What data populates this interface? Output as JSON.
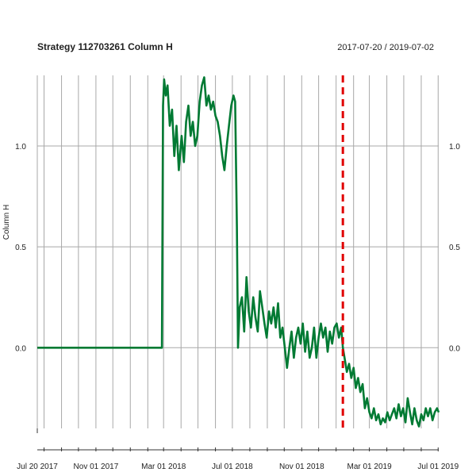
{
  "chart_data": {
    "type": "line",
    "title": "Strategy 112703261 Column H",
    "date_range": "2017-07-20 / 2019-07-02",
    "xlabel": "",
    "ylabel": "Column H",
    "x_tick_labels": [
      "Jul 20 2017",
      "Nov 01 2017",
      "Mar 01 2018",
      "Jul 01 2018",
      "Nov 01 2018",
      "Mar 01 2019",
      "Jul 01 2019"
    ],
    "x_tick_dates": [
      "2017-07-20",
      "2017-11-01",
      "2018-03-01",
      "2018-07-01",
      "2018-11-01",
      "2019-03-01",
      "2019-07-01"
    ],
    "xlim": [
      "2017-07-20",
      "2019-07-02"
    ],
    "y_tick_values": [
      0.0,
      0.5,
      1.0
    ],
    "y_tick_labels": [
      "0.0",
      "0.5",
      "1.0"
    ],
    "ylim": [
      -0.4,
      1.35
    ],
    "grid": true,
    "vline": {
      "date": "2019-01-13",
      "color": "#e00000",
      "style": "dashed"
    },
    "series": [
      {
        "color": "#007a33",
        "points": [
          [
            "2017-07-20",
            0.0
          ],
          [
            "2017-09-15",
            0.0
          ],
          [
            "2017-11-15",
            0.0
          ],
          [
            "2018-01-15",
            0.0
          ],
          [
            "2018-02-26",
            0.0
          ],
          [
            "2018-02-27",
            0.6
          ],
          [
            "2018-02-28",
            1.2
          ],
          [
            "2018-03-02",
            1.33
          ],
          [
            "2018-03-05",
            1.25
          ],
          [
            "2018-03-08",
            1.3
          ],
          [
            "2018-03-12",
            1.1
          ],
          [
            "2018-03-16",
            1.18
          ],
          [
            "2018-03-20",
            0.95
          ],
          [
            "2018-03-24",
            1.1
          ],
          [
            "2018-03-28",
            0.88
          ],
          [
            "2018-04-02",
            1.05
          ],
          [
            "2018-04-06",
            0.92
          ],
          [
            "2018-04-10",
            1.12
          ],
          [
            "2018-04-14",
            1.2
          ],
          [
            "2018-04-18",
            1.05
          ],
          [
            "2018-04-22",
            1.12
          ],
          [
            "2018-04-26",
            1.0
          ],
          [
            "2018-04-30",
            1.05
          ],
          [
            "2018-05-04",
            1.22
          ],
          [
            "2018-05-08",
            1.3
          ],
          [
            "2018-05-12",
            1.34
          ],
          [
            "2018-05-16",
            1.2
          ],
          [
            "2018-05-20",
            1.25
          ],
          [
            "2018-05-24",
            1.18
          ],
          [
            "2018-05-28",
            1.22
          ],
          [
            "2018-06-01",
            1.15
          ],
          [
            "2018-06-05",
            1.12
          ],
          [
            "2018-06-09",
            1.05
          ],
          [
            "2018-06-13",
            0.95
          ],
          [
            "2018-06-17",
            0.88
          ],
          [
            "2018-06-21",
            1.0
          ],
          [
            "2018-06-25",
            1.1
          ],
          [
            "2018-06-29",
            1.2
          ],
          [
            "2018-07-03",
            1.25
          ],
          [
            "2018-07-06",
            1.22
          ],
          [
            "2018-07-09",
            0.6
          ],
          [
            "2018-07-11",
            0.0
          ],
          [
            "2018-07-14",
            0.2
          ],
          [
            "2018-07-18",
            0.25
          ],
          [
            "2018-07-22",
            0.08
          ],
          [
            "2018-07-26",
            0.35
          ],
          [
            "2018-07-30",
            0.18
          ],
          [
            "2018-08-03",
            0.1
          ],
          [
            "2018-08-07",
            0.25
          ],
          [
            "2018-08-11",
            0.15
          ],
          [
            "2018-08-15",
            0.08
          ],
          [
            "2018-08-19",
            0.28
          ],
          [
            "2018-08-23",
            0.2
          ],
          [
            "2018-08-27",
            0.12
          ],
          [
            "2018-08-31",
            0.05
          ],
          [
            "2018-09-04",
            0.18
          ],
          [
            "2018-09-08",
            0.12
          ],
          [
            "2018-09-12",
            0.2
          ],
          [
            "2018-09-16",
            0.1
          ],
          [
            "2018-09-20",
            0.22
          ],
          [
            "2018-09-24",
            0.05
          ],
          [
            "2018-09-28",
            0.1
          ],
          [
            "2018-10-02",
            0.0
          ],
          [
            "2018-10-06",
            -0.1
          ],
          [
            "2018-10-10",
            0.0
          ],
          [
            "2018-10-14",
            0.08
          ],
          [
            "2018-10-18",
            -0.05
          ],
          [
            "2018-10-22",
            0.05
          ],
          [
            "2018-10-26",
            0.1
          ],
          [
            "2018-10-30",
            0.02
          ],
          [
            "2018-11-03",
            0.12
          ],
          [
            "2018-11-07",
            -0.02
          ],
          [
            "2018-11-11",
            0.08
          ],
          [
            "2018-11-15",
            -0.05
          ],
          [
            "2018-11-19",
            0.0
          ],
          [
            "2018-11-23",
            0.1
          ],
          [
            "2018-11-27",
            -0.05
          ],
          [
            "2018-12-01",
            0.05
          ],
          [
            "2018-12-05",
            0.12
          ],
          [
            "2018-12-09",
            0.05
          ],
          [
            "2018-12-13",
            0.1
          ],
          [
            "2018-12-17",
            -0.02
          ],
          [
            "2018-12-21",
            0.08
          ],
          [
            "2018-12-25",
            0.02
          ],
          [
            "2018-12-29",
            0.1
          ],
          [
            "2019-01-02",
            0.12
          ],
          [
            "2019-01-06",
            0.05
          ],
          [
            "2019-01-10",
            0.1
          ],
          [
            "2019-01-13",
            0.0
          ],
          [
            "2019-01-16",
            -0.05
          ],
          [
            "2019-01-20",
            -0.12
          ],
          [
            "2019-01-24",
            -0.08
          ],
          [
            "2019-01-28",
            -0.15
          ],
          [
            "2019-02-01",
            -0.1
          ],
          [
            "2019-02-05",
            -0.2
          ],
          [
            "2019-02-09",
            -0.15
          ],
          [
            "2019-02-13",
            -0.22
          ],
          [
            "2019-02-17",
            -0.18
          ],
          [
            "2019-02-21",
            -0.3
          ],
          [
            "2019-02-25",
            -0.25
          ],
          [
            "2019-03-01",
            -0.32
          ],
          [
            "2019-03-05",
            -0.35
          ],
          [
            "2019-03-09",
            -0.3
          ],
          [
            "2019-03-13",
            -0.36
          ],
          [
            "2019-03-17",
            -0.33
          ],
          [
            "2019-03-21",
            -0.38
          ],
          [
            "2019-03-25",
            -0.35
          ],
          [
            "2019-03-29",
            -0.37
          ],
          [
            "2019-04-02",
            -0.32
          ],
          [
            "2019-04-06",
            -0.36
          ],
          [
            "2019-04-10",
            -0.33
          ],
          [
            "2019-04-14",
            -0.3
          ],
          [
            "2019-04-18",
            -0.35
          ],
          [
            "2019-04-22",
            -0.28
          ],
          [
            "2019-04-26",
            -0.34
          ],
          [
            "2019-04-30",
            -0.3
          ],
          [
            "2019-05-04",
            -0.37
          ],
          [
            "2019-05-08",
            -0.25
          ],
          [
            "2019-05-12",
            -0.32
          ],
          [
            "2019-05-16",
            -0.38
          ],
          [
            "2019-05-20",
            -0.3
          ],
          [
            "2019-05-24",
            -0.36
          ],
          [
            "2019-05-28",
            -0.39
          ],
          [
            "2019-06-01",
            -0.33
          ],
          [
            "2019-06-05",
            -0.36
          ],
          [
            "2019-06-09",
            -0.3
          ],
          [
            "2019-06-13",
            -0.34
          ],
          [
            "2019-06-17",
            -0.3
          ],
          [
            "2019-06-21",
            -0.36
          ],
          [
            "2019-06-25",
            -0.32
          ],
          [
            "2019-06-29",
            -0.3
          ],
          [
            "2019-07-02",
            -0.32
          ]
        ]
      }
    ]
  }
}
